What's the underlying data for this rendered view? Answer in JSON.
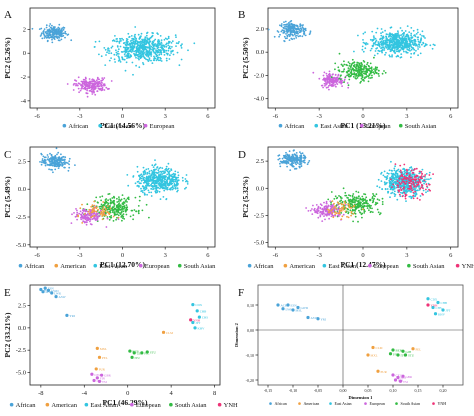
{
  "colors": {
    "African": "#4aa3d8",
    "American": "#f0a040",
    "East Asian": "#33c5e0",
    "European": "#cc66dd",
    "South Asian": "#33bb44",
    "YNH": "#ee3377",
    "axis": "#222222"
  },
  "chart_data": [
    {
      "panel": "A",
      "type": "scatter",
      "xlabel": "PC1 (14.56%)",
      "ylabel": "PC2 (5.26%)",
      "xlim": [
        -6.5,
        6.5
      ],
      "ylim": [
        -4.6,
        3.8
      ],
      "xticks": [
        -6,
        -3,
        0,
        3,
        6
      ],
      "yticks": [
        -4,
        -2,
        0,
        2
      ],
      "ytick_labels": [
        "-4",
        "-2",
        "0",
        "2"
      ],
      "legend": [
        "African",
        "East Asian",
        "European"
      ],
      "clusters": [
        {
          "group": "African",
          "cx": -4.8,
          "cy": 1.7,
          "sx": 0.8,
          "sy": 0.55,
          "n": 200
        },
        {
          "group": "East Asian",
          "cx": 1.4,
          "cy": 0.4,
          "sx": 2.1,
          "sy": 1.0,
          "n": 600
        },
        {
          "group": "European",
          "cx": -2.2,
          "cy": -2.7,
          "sx": 1.0,
          "sy": 0.55,
          "n": 220
        }
      ]
    },
    {
      "panel": "B",
      "type": "scatter",
      "xlabel": "PC1 (13.21%)",
      "ylabel": "PC2 (5.50%)",
      "xlim": [
        -6.5,
        6.5
      ],
      "ylim": [
        -4.8,
        3.8
      ],
      "xticks": [
        -6,
        -3,
        0,
        3,
        6
      ],
      "yticks": [
        -4,
        -2,
        0,
        2
      ],
      "ytick_labels": [
        "-4.0",
        "-2.0",
        "0.0",
        "2.0"
      ],
      "legend": [
        "African",
        "East Asian",
        "European",
        "South Asian"
      ],
      "clusters": [
        {
          "group": "African",
          "cx": -4.8,
          "cy": 1.9,
          "sx": 0.8,
          "sy": 0.6,
          "n": 200
        },
        {
          "group": "East Asian",
          "cx": 2.3,
          "cy": 0.8,
          "sx": 1.6,
          "sy": 0.9,
          "n": 550
        },
        {
          "group": "European",
          "cx": -2.1,
          "cy": -2.4,
          "sx": 0.7,
          "sy": 0.55,
          "n": 160
        },
        {
          "group": "South Asian",
          "cx": -0.3,
          "cy": -1.6,
          "sx": 1.2,
          "sy": 0.75,
          "n": 250
        }
      ]
    },
    {
      "panel": "C",
      "type": "scatter",
      "xlabel": "PC1 (12.70%)",
      "ylabel": "PC2 (5.49%)",
      "xlim": [
        -6.5,
        6.5
      ],
      "ylim": [
        -5.2,
        3.8
      ],
      "xticks": [
        -6,
        -3,
        0,
        3,
        6
      ],
      "yticks": [
        -5,
        -2.5,
        0,
        2.5
      ],
      "ytick_labels": [
        "-5.0",
        "-2.5",
        "0.0",
        "2.5"
      ],
      "legend": [
        "African",
        "American",
        "East Asian",
        "European",
        "South Asian"
      ],
      "clusters": [
        {
          "group": "African",
          "cx": -4.8,
          "cy": 2.5,
          "sx": 0.8,
          "sy": 0.6,
          "n": 200
        },
        {
          "group": "East Asian",
          "cx": 2.6,
          "cy": 0.8,
          "sx": 1.4,
          "sy": 1.0,
          "n": 500
        },
        {
          "group": "South Asian",
          "cx": -0.6,
          "cy": -1.7,
          "sx": 1.4,
          "sy": 0.9,
          "n": 260
        },
        {
          "group": "European",
          "cx": -2.4,
          "cy": -2.4,
          "sx": 0.9,
          "sy": 0.6,
          "n": 160
        },
        {
          "group": "American",
          "cx": -1.6,
          "cy": -2.0,
          "sx": 1.0,
          "sy": 0.7,
          "n": 60
        }
      ]
    },
    {
      "panel": "D",
      "type": "scatter",
      "xlabel": "PC1 (12.47%)",
      "ylabel": "PC2 (5.32%)",
      "xlim": [
        -6.5,
        6.5
      ],
      "ylim": [
        -5.4,
        3.8
      ],
      "xticks": [
        -6,
        -3,
        0,
        3,
        6
      ],
      "yticks": [
        -5,
        -2.5,
        0,
        2.5
      ],
      "ytick_labels": [
        "-5.0",
        "-2.5",
        "0.0",
        "2.5"
      ],
      "legend": [
        "African",
        "American",
        "East Asian",
        "European",
        "South Asian",
        "YNH"
      ],
      "clusters": [
        {
          "group": "African",
          "cx": -4.8,
          "cy": 2.6,
          "sx": 0.8,
          "sy": 0.6,
          "n": 200
        },
        {
          "group": "East Asian",
          "cx": 2.8,
          "cy": 0.6,
          "sx": 1.3,
          "sy": 1.1,
          "n": 480
        },
        {
          "group": "YNH",
          "cx": 3.2,
          "cy": 0.5,
          "sx": 1.2,
          "sy": 1.1,
          "n": 160
        },
        {
          "group": "South Asian",
          "cx": -0.4,
          "cy": -1.4,
          "sx": 1.5,
          "sy": 0.9,
          "n": 250
        },
        {
          "group": "European",
          "cx": -2.4,
          "cy": -2.1,
          "sx": 0.9,
          "sy": 0.6,
          "n": 160
        },
        {
          "group": "American",
          "cx": -1.5,
          "cy": -1.9,
          "sx": 1.0,
          "sy": 0.7,
          "n": 60
        }
      ]
    },
    {
      "panel": "E",
      "type": "scatter",
      "xlabel": "PC1 (46.29%)",
      "ylabel": "PC2 (33.21%)",
      "xlim": [
        -9,
        8.5
      ],
      "ylim": [
        -6.4,
        4.8
      ],
      "xticks": [
        -8,
        -4,
        0,
        4,
        8
      ],
      "yticks": [
        -5,
        -2.5,
        0,
        2.5
      ],
      "ytick_labels": [
        "-5.0",
        "-2.5",
        "0.0",
        "2.5"
      ],
      "legend": [
        "African",
        "American",
        "East Asian",
        "European",
        "South Asian",
        "YNH"
      ],
      "points": [
        {
          "group": "African",
          "x": -8.0,
          "y": 4.3,
          "label": "ACB"
        },
        {
          "group": "African",
          "x": -7.6,
          "y": 4.45,
          "label": "ESN"
        },
        {
          "group": "African",
          "x": -7.3,
          "y": 4.2,
          "label": "GWD"
        },
        {
          "group": "African",
          "x": -7.0,
          "y": 3.9,
          "label": "LWK"
        },
        {
          "group": "African",
          "x": -6.6,
          "y": 3.5,
          "label": "ASW"
        },
        {
          "group": "African",
          "x": -7.8,
          "y": 4.05,
          "label": "MSL"
        },
        {
          "group": "African",
          "x": -5.6,
          "y": 1.4,
          "label": "YRI"
        },
        {
          "group": "East Asian",
          "x": 6.0,
          "y": 2.6,
          "label": "CDX"
        },
        {
          "group": "East Asian",
          "x": 6.4,
          "y": 1.9,
          "label": "CHB"
        },
        {
          "group": "East Asian",
          "x": 6.6,
          "y": 1.2,
          "label": "CHS"
        },
        {
          "group": "East Asian",
          "x": 6.0,
          "y": 0.6,
          "label": "JPT"
        },
        {
          "group": "East Asian",
          "x": 6.2,
          "y": 0.0,
          "label": "KHV"
        },
        {
          "group": "YNH",
          "x": 5.8,
          "y": 0.9,
          "label": "YNH"
        },
        {
          "group": "American",
          "x": 3.3,
          "y": -0.5,
          "label": "CLM"
        },
        {
          "group": "American",
          "x": -2.8,
          "y": -2.3,
          "label": "MXL"
        },
        {
          "group": "American",
          "x": -2.6,
          "y": -3.3,
          "label": "PEL"
        },
        {
          "group": "American",
          "x": -2.9,
          "y": -4.6,
          "label": "PUR"
        },
        {
          "group": "South Asian",
          "x": 0.2,
          "y": -2.6,
          "label": "BEB"
        },
        {
          "group": "South Asian",
          "x": 0.6,
          "y": -2.8,
          "label": "GIH"
        },
        {
          "group": "South Asian",
          "x": 0.4,
          "y": -3.3,
          "label": "ITU"
        },
        {
          "group": "South Asian",
          "x": 1.3,
          "y": -2.8,
          "label": "PJL"
        },
        {
          "group": "South Asian",
          "x": 1.8,
          "y": -2.7,
          "label": "STU"
        },
        {
          "group": "European",
          "x": -3.3,
          "y": -5.2,
          "label": "CEU"
        },
        {
          "group": "European",
          "x": -2.8,
          "y": -5.6,
          "label": "FIN"
        },
        {
          "group": "European",
          "x": -2.4,
          "y": -5.3,
          "label": "GBR"
        },
        {
          "group": "European",
          "x": -3.1,
          "y": -5.9,
          "label": "IBS"
        },
        {
          "group": "European",
          "x": -2.6,
          "y": -6.0,
          "label": "TSI"
        }
      ]
    },
    {
      "panel": "F",
      "type": "scatter",
      "xlabel": "Dimension 1",
      "ylabel": "Dimension 2",
      "xlim": [
        -0.17,
        0.24
      ],
      "ylim": [
        -0.22,
        0.18
      ],
      "xticks": [
        -0.15,
        -0.1,
        -0.05,
        0,
        0.05,
        0.1,
        0.15,
        0.2
      ],
      "xtick_labels": [
        "-0,15",
        "-0,10",
        "-0,05",
        "0,00",
        "0,05",
        "0,10",
        "0,15",
        "0,20"
      ],
      "yticks": [
        -0.2,
        -0.1,
        0,
        0.1
      ],
      "ytick_labels": [
        "-0,20",
        "-0,10",
        "0,00",
        "0,10"
      ],
      "legend": [
        "African",
        "American",
        "East Asian",
        "European",
        "South Asian",
        "YNH"
      ],
      "points": [
        {
          "group": "African",
          "x": -0.13,
          "y": 0.1,
          "label": "ACB"
        },
        {
          "group": "African",
          "x": -0.11,
          "y": 0.1,
          "label": "ESN"
        },
        {
          "group": "African",
          "x": -0.09,
          "y": 0.09,
          "label": "GWD"
        },
        {
          "group": "African",
          "x": -0.12,
          "y": 0.085,
          "label": "LWK"
        },
        {
          "group": "African",
          "x": -0.1,
          "y": 0.08,
          "label": "MSL"
        },
        {
          "group": "African",
          "x": -0.07,
          "y": 0.05,
          "label": "ASW"
        },
        {
          "group": "African",
          "x": -0.05,
          "y": 0.045,
          "label": "YRI"
        },
        {
          "group": "East Asian",
          "x": 0.17,
          "y": 0.125,
          "label": "CDX"
        },
        {
          "group": "East Asian",
          "x": 0.19,
          "y": 0.11,
          "label": "CHB"
        },
        {
          "group": "East Asian",
          "x": 0.18,
          "y": 0.09,
          "label": "CHS"
        },
        {
          "group": "East Asian",
          "x": 0.2,
          "y": 0.08,
          "label": "JPT"
        },
        {
          "group": "East Asian",
          "x": 0.185,
          "y": 0.065,
          "label": "KHV"
        },
        {
          "group": "YNH",
          "x": 0.17,
          "y": 0.1,
          "label": "YNH"
        },
        {
          "group": "American",
          "x": 0.06,
          "y": -0.07,
          "label": "CLM"
        },
        {
          "group": "American",
          "x": 0.05,
          "y": -0.1,
          "label": "MXL"
        },
        {
          "group": "American",
          "x": 0.14,
          "y": -0.075,
          "label": "PEL"
        },
        {
          "group": "American",
          "x": 0.07,
          "y": -0.165,
          "label": "PUR"
        },
        {
          "group": "South Asian",
          "x": 0.1,
          "y": -0.08,
          "label": "BEB"
        },
        {
          "group": "South Asian",
          "x": 0.12,
          "y": -0.085,
          "label": "GIH"
        },
        {
          "group": "South Asian",
          "x": 0.11,
          "y": -0.1,
          "label": "ITU"
        },
        {
          "group": "South Asian",
          "x": 0.095,
          "y": -0.095,
          "label": "PJL"
        },
        {
          "group": "South Asian",
          "x": 0.125,
          "y": -0.1,
          "label": "STU"
        },
        {
          "group": "European",
          "x": 0.1,
          "y": -0.18,
          "label": "CEU"
        },
        {
          "group": "European",
          "x": 0.11,
          "y": -0.19,
          "label": "FIN"
        },
        {
          "group": "European",
          "x": 0.12,
          "y": -0.185,
          "label": "GBR"
        },
        {
          "group": "European",
          "x": 0.105,
          "y": -0.2,
          "label": "IBS"
        },
        {
          "group": "European",
          "x": 0.115,
          "y": -0.205,
          "label": "TSI"
        }
      ]
    }
  ]
}
